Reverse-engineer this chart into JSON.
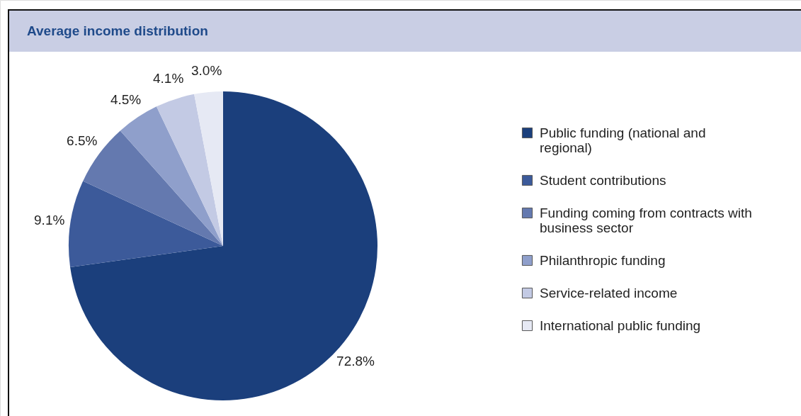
{
  "chart_data": {
    "type": "pie",
    "title": "Average income distribution",
    "categories": [
      "Public funding (national and regional)",
      "Student contributions",
      "Funding coming from contracts with business sector",
      "Philanthropic funding",
      "Service-related income",
      "International public funding"
    ],
    "values": [
      72.8,
      9.1,
      6.5,
      4.5,
      4.1,
      3.0
    ],
    "value_labels": [
      "72.8%",
      "9.1%",
      "6.5%",
      "4.5%",
      "4.1%",
      "3.0%"
    ],
    "colors": [
      "#1b3f7c",
      "#3c5a9a",
      "#6479af",
      "#8f9fcb",
      "#c3cae4",
      "#e6e9f4"
    ],
    "legend": "right"
  }
}
